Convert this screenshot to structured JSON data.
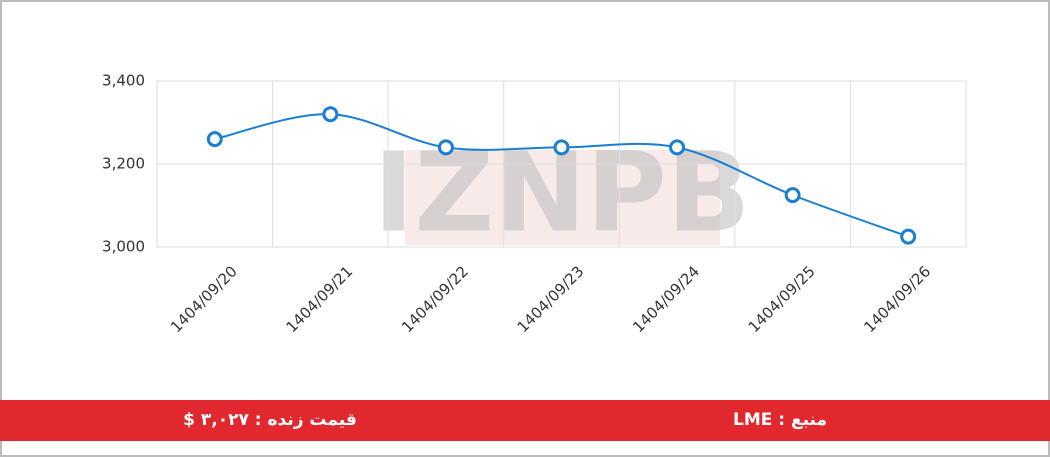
{
  "chart_data": {
    "type": "line",
    "watermark": "IZNPB",
    "categories": [
      "1404/09/20",
      "1404/09/21",
      "1404/09/22",
      "1404/09/23",
      "1404/09/24",
      "1404/09/25",
      "1404/09/26"
    ],
    "series": [
      {
        "name": "price",
        "color": "#1a7fd4",
        "values": [
          3260,
          3320,
          3240,
          3240,
          3240,
          3125,
          3025
        ]
      }
    ],
    "ylim": [
      3000,
      3400
    ],
    "yticks": [
      {
        "value": 3000,
        "label": "3,000"
      },
      {
        "value": 3200,
        "label": "3,200"
      },
      {
        "value": 3400,
        "label": "3,400"
      }
    ],
    "grid": true
  },
  "footer": {
    "live_price": "قیمت زنده : ۳,۰۲۷ $",
    "source": "منبع : LME"
  }
}
